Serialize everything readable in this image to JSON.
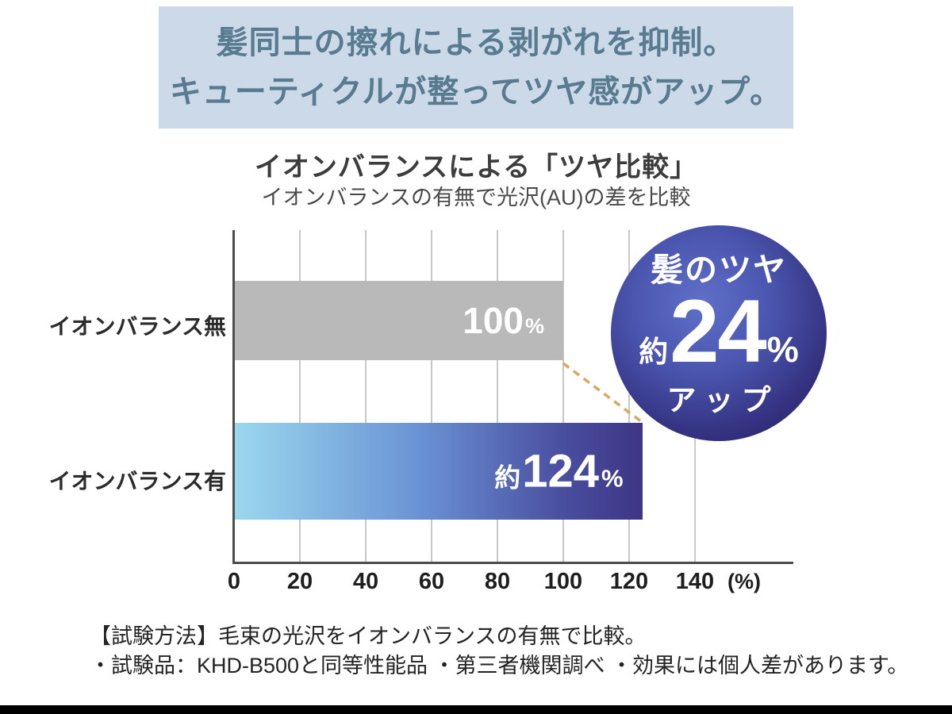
{
  "banner": {
    "line1": "髪同士の擦れによる剥がれを抑制。",
    "line2": "キューティクルが整ってツヤ感がアップ。"
  },
  "heading": {
    "title": "イオンバランスによる「ツヤ比較」",
    "subtitle": "イオンバランスの有無で光沢(AU)の差を比較"
  },
  "chart_data": {
    "type": "bar",
    "orientation": "horizontal",
    "title": "イオンバランスによる「ツヤ比較」",
    "subtitle": "イオンバランスの有無で光沢(AU)の差を比較",
    "categories": [
      "イオンバランス無",
      "イオンバランス有"
    ],
    "values": [
      100,
      124
    ],
    "bars": [
      {
        "category": "イオンバランス無",
        "value": 100,
        "label_prefix": "",
        "label_number": "100",
        "label_unit": "%",
        "color": "#b9b9b9"
      },
      {
        "category": "イオンバランス有",
        "value": 124,
        "label_prefix": "約",
        "label_number": "124",
        "label_unit": "%",
        "color": "gradient #9ad8ee → #3e3585"
      }
    ],
    "xlim": [
      0,
      140
    ],
    "x_ticks": [
      "0",
      "20",
      "40",
      "60",
      "80",
      "100",
      "120",
      "140"
    ],
    "x_unit": "(%)",
    "grid": true,
    "legend": "none",
    "annotation": "髪のツヤ 約24%アップ"
  },
  "badge": {
    "top": "髪のツヤ",
    "prefix": "約",
    "number": "24",
    "unit": "%",
    "bottom": "アップ"
  },
  "footnotes": {
    "line1": "【試験方法】毛束の光沢をイオンバランスの有無で比較。",
    "line2": "・試験品：KHD-B500と同等性能品 ・第三者機関調べ ・効果には個人差があります。"
  },
  "colors": {
    "banner_bg": "#ccd9e8",
    "banner_text": "#597b90",
    "bar_gray": "#b9b9b9",
    "bar_gradient_start": "#9ad8ee",
    "bar_gradient_end": "#3e3585",
    "badge_center": "#5f70c8",
    "badge_edge": "#262256",
    "dash_line": "#d9a85c",
    "gridline": "#c8c8c8",
    "axis": "#4d4d4d"
  }
}
